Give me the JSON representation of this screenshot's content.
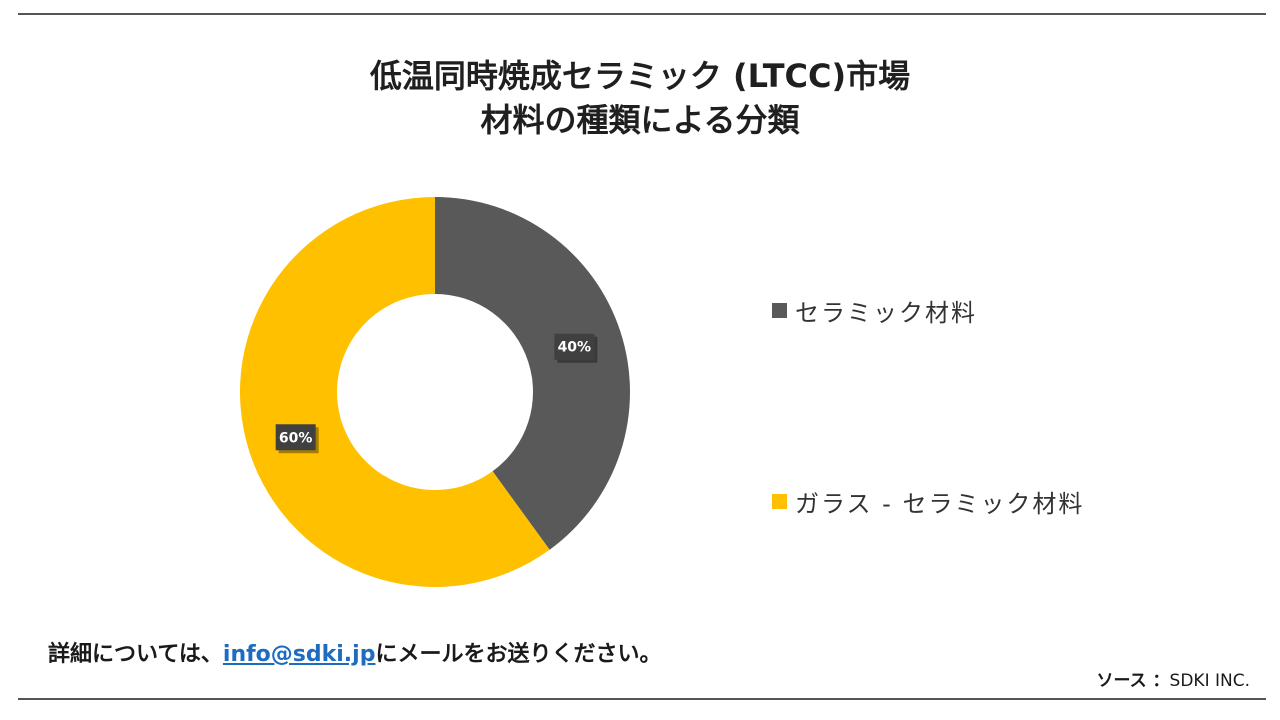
{
  "title_line1": "低温同時焼成セラミック (LTCC)市場",
  "title_line2": "材料の種類による分類",
  "chart_data": {
    "type": "pie",
    "donut": true,
    "slices": [
      {
        "label": "セラミック材料",
        "value": 40,
        "display": "40%",
        "color": "#595959"
      },
      {
        "label": "ガラス - セラミック材料",
        "value": 60,
        "display": "60%",
        "color": "#FFC000"
      }
    ],
    "legend_placement": "right"
  },
  "footer": {
    "prefix": "詳細については、",
    "email": "info@sdki.jp",
    "suffix": "にメールをお送りください。"
  },
  "source": {
    "label": "ソース ：",
    "value": "SDKI INC."
  }
}
